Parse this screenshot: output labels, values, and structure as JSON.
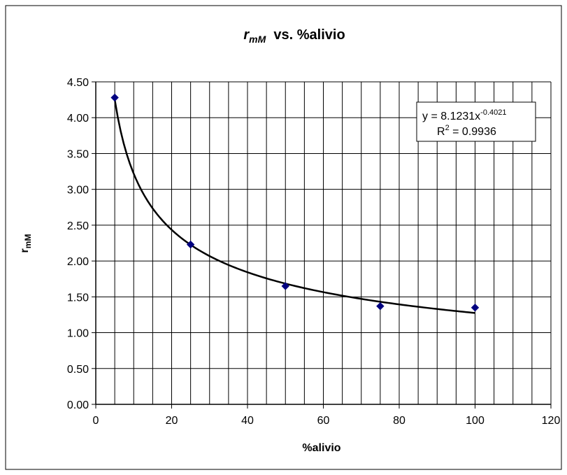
{
  "chart_data": {
    "type": "scatter",
    "title_main": "r",
    "title_sub": "mM",
    "title_rest": "  vs. %alivio",
    "xlabel": "%alivio",
    "ylabel_main": "r",
    "ylabel_sub": "mM",
    "xlim": [
      0,
      120
    ],
    "ylim": [
      0,
      4.5
    ],
    "x_ticks": [
      "0",
      "20",
      "40",
      "60",
      "80",
      "100",
      "120"
    ],
    "y_ticks": [
      "0.00",
      "0.50",
      "1.00",
      "1.50",
      "2.00",
      "2.50",
      "3.00",
      "3.50",
      "4.00",
      "4.50"
    ],
    "grid": true,
    "legend": "none",
    "series": [
      {
        "x": [
          5,
          25,
          50,
          75,
          100
        ],
        "y": [
          4.28,
          2.23,
          1.65,
          1.37,
          1.35
        ],
        "color": "#000080",
        "marker": "diamond"
      }
    ],
    "trendline": {
      "kind": "power",
      "a": 8.1231,
      "b": -0.4021,
      "x_range": [
        5,
        100
      ],
      "color": "#000000",
      "equation_prefix": "y = 8.1231x",
      "equation_exp": "-0.4021",
      "r2_prefix": "R",
      "r2_exp": "2",
      "r2_suffix": " = 0.9936"
    }
  }
}
